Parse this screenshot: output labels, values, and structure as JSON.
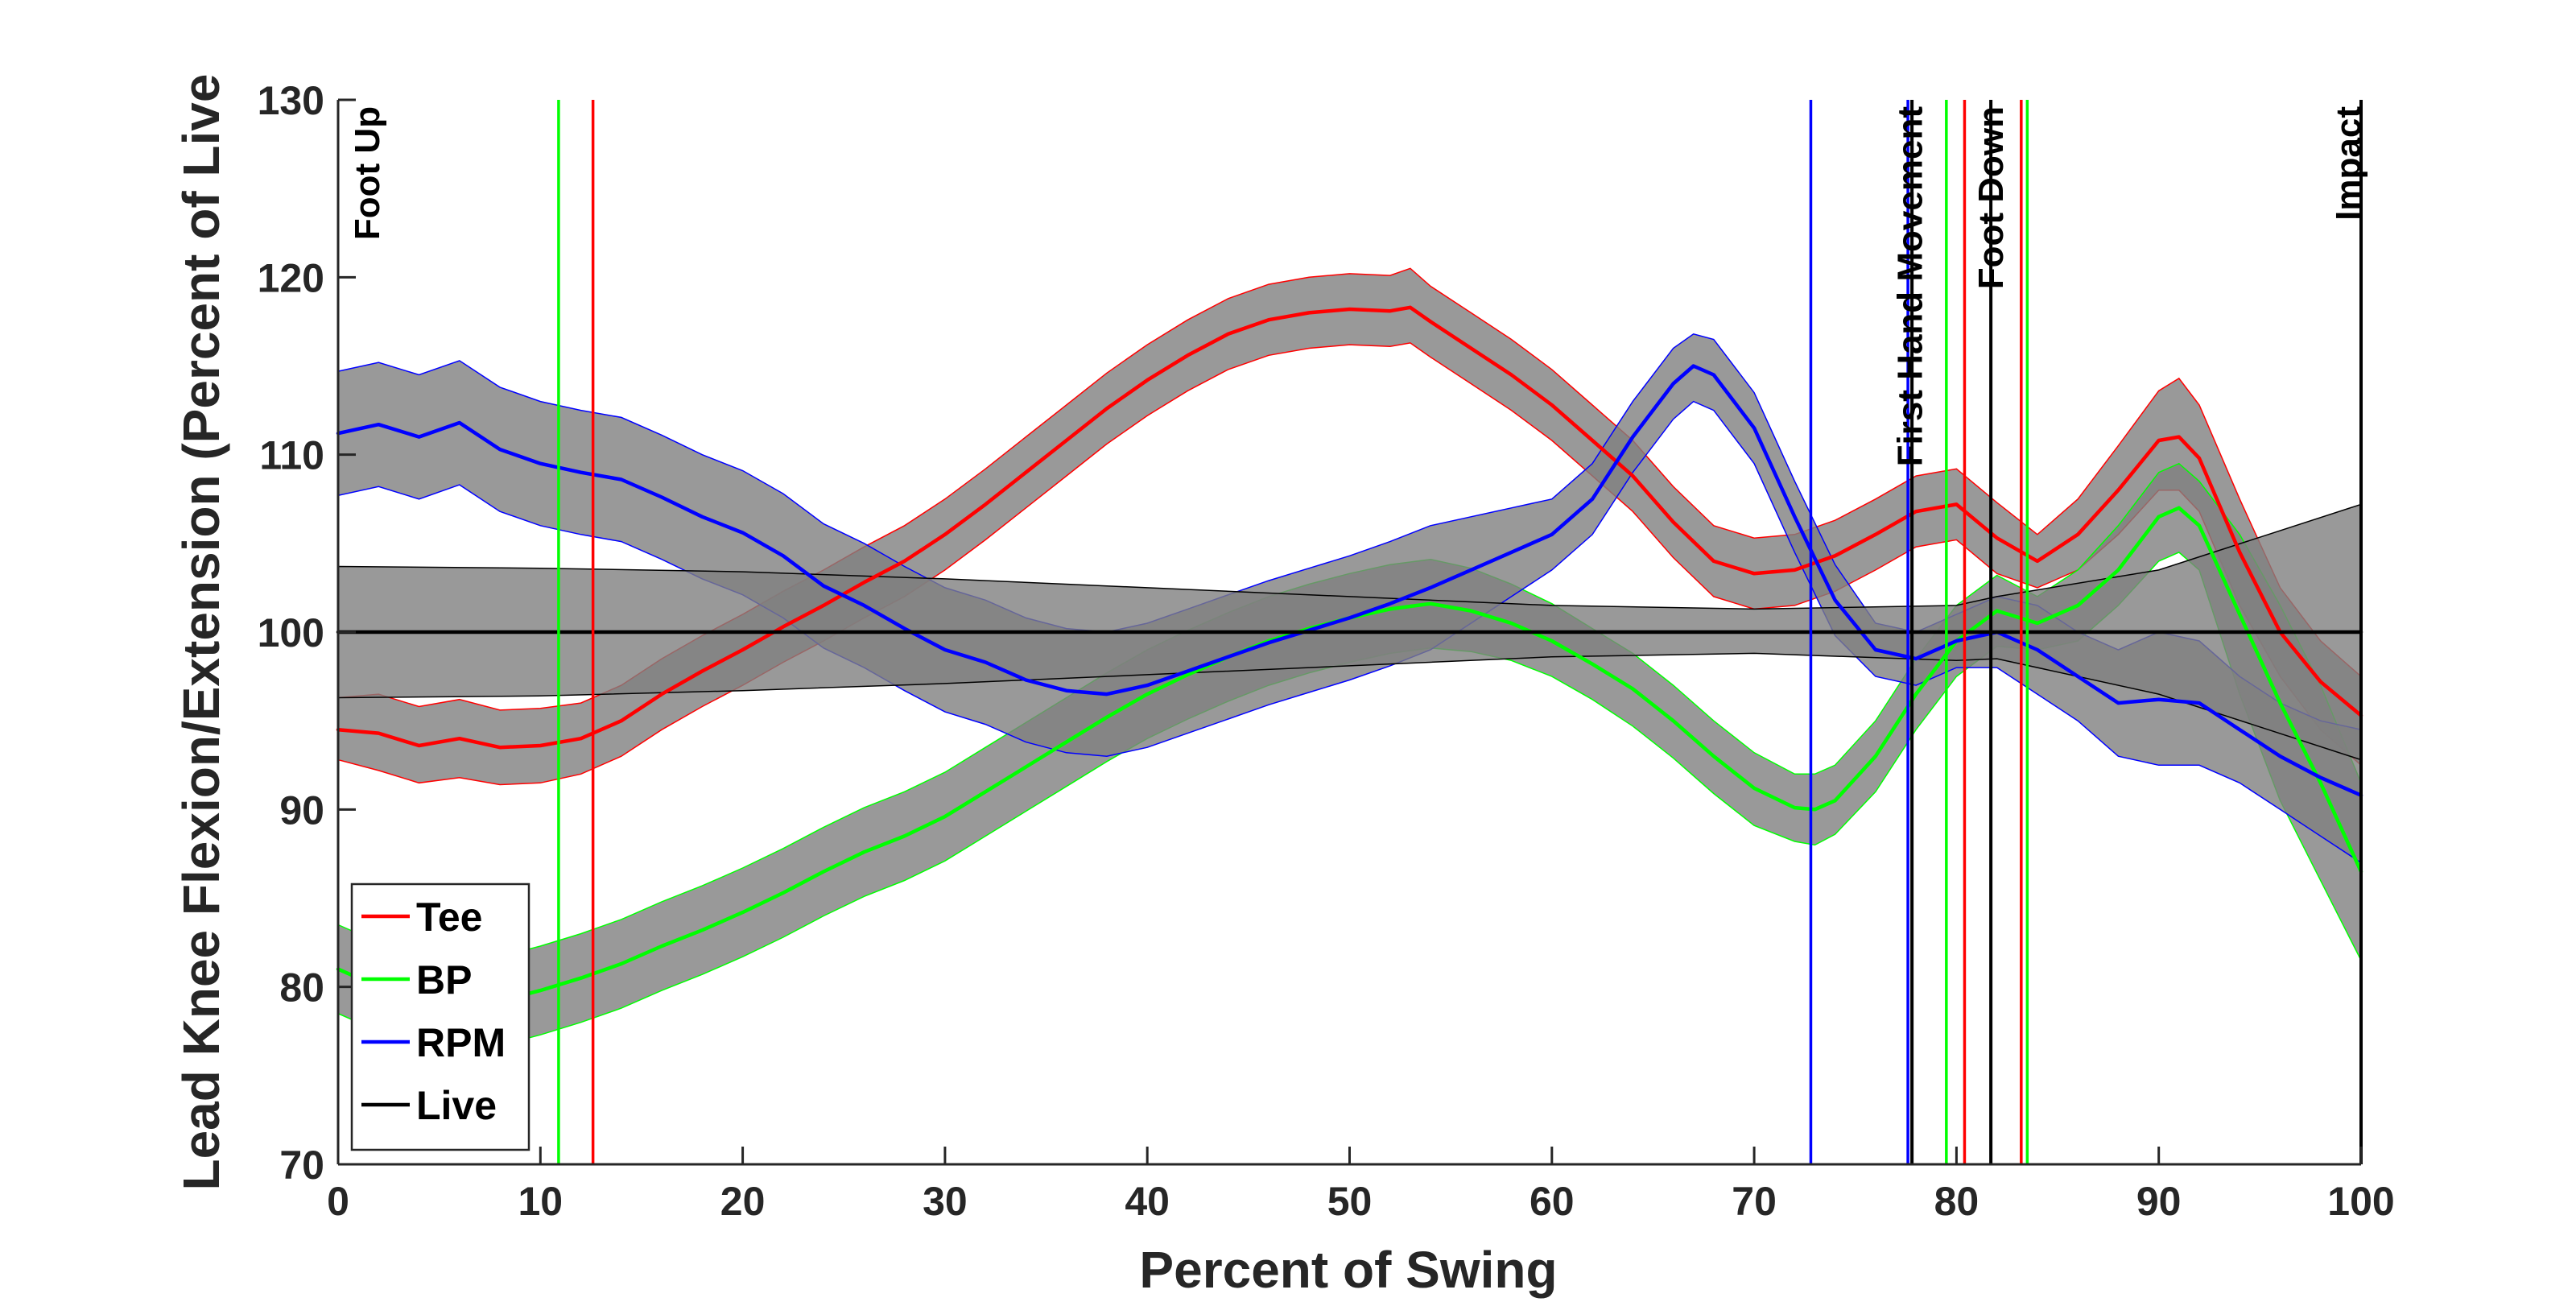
{
  "chart_data": {
    "type": "line",
    "title": "",
    "xlabel": "Percent of Swing",
    "ylabel": "Lead Knee Flexion/Extension (Percent of Live",
    "xlim": [
      0,
      100
    ],
    "ylim": [
      70,
      130
    ],
    "xticks": [
      0,
      10,
      20,
      30,
      40,
      50,
      60,
      70,
      80,
      90,
      100
    ],
    "yticks": [
      70,
      80,
      90,
      100,
      110,
      120,
      130
    ],
    "grid": false,
    "legend_position": "bottom-left",
    "series": [
      {
        "name": "Tee",
        "color": "#ff0000",
        "x": [
          0,
          2,
          4,
          6,
          8,
          10,
          12,
          14,
          16,
          18,
          20,
          22,
          24,
          26,
          28,
          30,
          32,
          34,
          36,
          38,
          40,
          42,
          44,
          46,
          48,
          50,
          52,
          53,
          54,
          56,
          58,
          60,
          62,
          64,
          66,
          68,
          70,
          72,
          74,
          76,
          78,
          80,
          82,
          84,
          86,
          88,
          90,
          91,
          92,
          94,
          96,
          98,
          100
        ],
        "y": [
          94.5,
          94.3,
          93.6,
          94.0,
          93.5,
          93.6,
          94.0,
          95.0,
          96.5,
          97.8,
          99.0,
          100.3,
          101.5,
          102.8,
          104.0,
          105.5,
          107.2,
          109.0,
          110.8,
          112.6,
          114.2,
          115.6,
          116.8,
          117.6,
          118.0,
          118.2,
          118.1,
          118.3,
          117.5,
          116.0,
          114.5,
          112.8,
          110.8,
          108.8,
          106.2,
          104.0,
          103.3,
          103.5,
          104.3,
          105.5,
          106.8,
          107.2,
          105.3,
          104.0,
          105.5,
          108.0,
          110.8,
          111.0,
          109.8,
          104.5,
          100.0,
          97.2,
          95.3
        ],
        "lower": [
          92.8,
          92.2,
          91.5,
          91.8,
          91.4,
          91.5,
          92.0,
          93.0,
          94.5,
          95.8,
          97.0,
          98.3,
          99.5,
          100.8,
          102.0,
          103.5,
          105.2,
          107.0,
          108.8,
          110.6,
          112.2,
          113.6,
          114.8,
          115.6,
          116.0,
          116.2,
          116.1,
          116.3,
          115.5,
          114.0,
          112.5,
          110.8,
          108.8,
          106.8,
          104.2,
          102.0,
          101.3,
          101.5,
          102.3,
          103.5,
          104.8,
          105.2,
          103.3,
          102.5,
          103.5,
          105.5,
          108.0,
          108.0,
          106.8,
          101.5,
          97.5,
          94.5,
          92.5
        ],
        "upper": [
          96.3,
          96.5,
          95.8,
          96.2,
          95.6,
          95.7,
          96.0,
          97.0,
          98.5,
          99.8,
          101.0,
          102.3,
          103.5,
          104.8,
          106.0,
          107.5,
          109.2,
          111.0,
          112.8,
          114.6,
          116.2,
          117.6,
          118.8,
          119.6,
          120.0,
          120.2,
          120.1,
          120.5,
          119.5,
          118.0,
          116.5,
          114.8,
          112.8,
          110.8,
          108.2,
          106.0,
          105.3,
          105.5,
          106.3,
          107.5,
          108.8,
          109.2,
          107.3,
          105.5,
          107.5,
          110.5,
          113.6,
          114.3,
          112.8,
          107.5,
          102.5,
          99.5,
          97.5
        ]
      },
      {
        "name": "BP",
        "color": "#00ff00",
        "x": [
          0,
          2,
          4,
          6,
          8,
          10,
          12,
          14,
          16,
          18,
          20,
          22,
          24,
          26,
          28,
          30,
          32,
          34,
          36,
          38,
          40,
          42,
          44,
          46,
          48,
          50,
          52,
          54,
          56,
          58,
          60,
          62,
          64,
          66,
          68,
          70,
          72,
          73,
          74,
          76,
          78,
          80,
          82,
          84,
          86,
          88,
          90,
          91,
          92,
          94,
          96,
          98,
          100
        ],
        "y": [
          81.0,
          80.0,
          79.3,
          79.0,
          79.2,
          79.8,
          80.5,
          81.3,
          82.3,
          83.2,
          84.2,
          85.3,
          86.5,
          87.6,
          88.5,
          89.6,
          91.0,
          92.4,
          93.8,
          95.2,
          96.5,
          97.6,
          98.6,
          99.5,
          100.2,
          100.8,
          101.3,
          101.6,
          101.2,
          100.5,
          99.5,
          98.2,
          96.8,
          95.0,
          93.0,
          91.2,
          90.1,
          90.0,
          90.5,
          93.0,
          96.5,
          99.5,
          101.2,
          100.5,
          101.5,
          103.5,
          106.5,
          107.0,
          106.0,
          101.0,
          96.0,
          91.5,
          86.5
        ],
        "lower": [
          78.5,
          77.5,
          76.8,
          76.5,
          76.7,
          77.3,
          78.0,
          78.8,
          79.8,
          80.7,
          81.7,
          82.8,
          84.0,
          85.1,
          86.0,
          87.1,
          88.5,
          89.9,
          91.3,
          92.7,
          94.0,
          95.1,
          96.1,
          97.0,
          97.7,
          98.3,
          98.8,
          99.1,
          98.9,
          98.4,
          97.5,
          96.2,
          94.7,
          92.9,
          90.9,
          89.1,
          88.2,
          88.0,
          88.6,
          91.0,
          94.5,
          97.5,
          99.2,
          99.0,
          99.5,
          101.5,
          104.0,
          104.5,
          103.5,
          96.5,
          90.5,
          86.0,
          81.5
        ],
        "upper": [
          83.5,
          82.5,
          81.8,
          81.5,
          81.7,
          82.3,
          83.0,
          83.8,
          84.8,
          85.7,
          86.7,
          87.8,
          89.0,
          90.1,
          91.0,
          92.1,
          93.5,
          94.9,
          96.3,
          97.7,
          99.0,
          100.1,
          101.1,
          102.0,
          102.7,
          103.3,
          103.8,
          104.1,
          103.6,
          102.7,
          101.6,
          100.2,
          98.8,
          97.0,
          95.0,
          93.2,
          92.0,
          92.0,
          92.5,
          95.0,
          98.5,
          101.5,
          103.2,
          102.0,
          103.5,
          106.0,
          109.0,
          109.5,
          108.5,
          105.5,
          101.5,
          97.0,
          91.5
        ]
      },
      {
        "name": "RPM",
        "color": "#0000ff",
        "x": [
          0,
          2,
          4,
          6,
          8,
          10,
          12,
          14,
          16,
          18,
          20,
          22,
          24,
          26,
          28,
          30,
          32,
          34,
          36,
          38,
          40,
          42,
          44,
          46,
          48,
          50,
          52,
          54,
          56,
          58,
          60,
          62,
          64,
          66,
          67,
          68,
          70,
          72,
          74,
          76,
          78,
          80,
          82,
          84,
          86,
          88,
          90,
          92,
          94,
          96,
          98,
          100
        ],
        "y": [
          111.2,
          111.7,
          111.0,
          111.8,
          110.3,
          109.5,
          109.0,
          108.6,
          107.6,
          106.5,
          105.6,
          104.3,
          102.6,
          101.5,
          100.2,
          99.0,
          98.3,
          97.3,
          96.7,
          96.5,
          97.0,
          97.8,
          98.6,
          99.4,
          100.1,
          100.8,
          101.6,
          102.5,
          103.5,
          104.5,
          105.5,
          107.5,
          111.0,
          114.0,
          115.0,
          114.5,
          111.5,
          106.5,
          101.8,
          99.0,
          98.5,
          99.5,
          100.0,
          99.0,
          97.5,
          96.0,
          96.2,
          96.0,
          94.5,
          93.0,
          91.8,
          90.8
        ],
        "lower": [
          107.7,
          108.2,
          107.5,
          108.3,
          106.8,
          106.0,
          105.5,
          105.1,
          104.1,
          103.0,
          102.1,
          100.8,
          99.1,
          98.0,
          96.7,
          95.5,
          94.8,
          93.8,
          93.2,
          93.0,
          93.5,
          94.3,
          95.1,
          95.9,
          96.6,
          97.3,
          98.1,
          99.0,
          100.5,
          102.0,
          103.5,
          105.5,
          109.0,
          112.0,
          113.0,
          112.5,
          109.5,
          104.5,
          99.8,
          97.5,
          97.0,
          98.0,
          98.0,
          96.5,
          95.0,
          93.0,
          92.5,
          92.5,
          91.5,
          90.0,
          88.5,
          87.0
        ],
        "upper": [
          114.7,
          115.2,
          114.5,
          115.3,
          113.8,
          113.0,
          112.5,
          112.1,
          111.1,
          110.0,
          109.1,
          107.8,
          106.1,
          105.0,
          103.7,
          102.5,
          101.8,
          100.8,
          100.2,
          100.0,
          100.5,
          101.3,
          102.1,
          102.9,
          103.6,
          104.3,
          105.1,
          106.0,
          106.5,
          107.0,
          107.5,
          109.5,
          113.0,
          116.0,
          116.8,
          116.5,
          113.5,
          108.5,
          103.8,
          100.5,
          100.0,
          101.0,
          102.0,
          101.5,
          100.0,
          99.0,
          100.0,
          99.5,
          97.5,
          96.0,
          95.0,
          94.5
        ]
      },
      {
        "name": "Live",
        "color": "#000000",
        "x": [
          0,
          10,
          20,
          30,
          40,
          50,
          60,
          70,
          80,
          82,
          90,
          100
        ],
        "y": [
          100,
          100,
          100,
          100,
          100,
          100,
          100,
          100,
          100,
          100,
          100,
          100
        ],
        "lower": [
          96.3,
          96.4,
          96.7,
          97.1,
          97.6,
          98.1,
          98.6,
          98.8,
          98.4,
          98.5,
          96.5,
          92.8
        ],
        "upper": [
          103.7,
          103.6,
          103.4,
          103.0,
          102.5,
          102.0,
          101.5,
          101.3,
          101.5,
          102.0,
          103.5,
          107.2
        ]
      }
    ],
    "event_lines": [
      {
        "series": "BP",
        "color": "#00ff00",
        "x": 10.9
      },
      {
        "series": "Tee",
        "color": "#ff0000",
        "x": 12.6
      },
      {
        "series": "RPM",
        "color": "#0000ff",
        "x": 72.8
      },
      {
        "series": "RPM",
        "color": "#0000ff",
        "x": 77.6
      },
      {
        "series": "Live",
        "color": "#000000",
        "x": 77.8
      },
      {
        "series": "BP",
        "color": "#00ff00",
        "x": 79.5
      },
      {
        "series": "Tee",
        "color": "#ff0000",
        "x": 80.4
      },
      {
        "series": "Live",
        "color": "#000000",
        "x": 81.7
      },
      {
        "series": "Tee",
        "color": "#ff0000",
        "x": 83.2
      },
      {
        "series": "BP",
        "color": "#00ff00",
        "x": 83.5
      },
      {
        "series": "RPM",
        "color": "#0000ff",
        "x": 100
      },
      {
        "series": "Live",
        "color": "#000000",
        "x": 100
      }
    ],
    "annotations": [
      {
        "text": "Foot Up",
        "x": 0
      },
      {
        "text": "First Hand Movement",
        "x": 77.7
      },
      {
        "text": "Foot Down",
        "x": 81.7
      },
      {
        "text": "Impact",
        "x": 100
      }
    ],
    "band_fill_color": "#808080",
    "axis_color": "#262626"
  }
}
